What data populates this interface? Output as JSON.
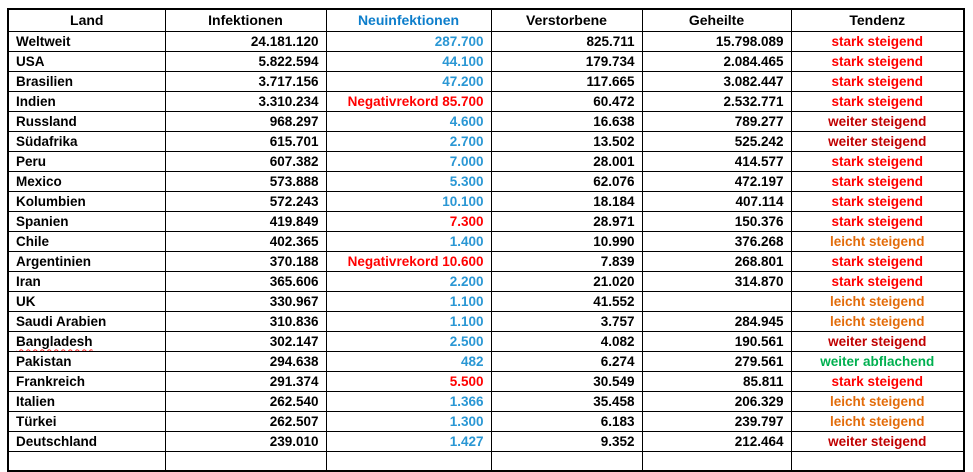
{
  "colors": {
    "header_blue": "#0d7ecb",
    "blue": "#2a97d4",
    "bright_red": "#ff0000",
    "dark_red": "#c00000",
    "orange": "#e36c0a",
    "green": "#00b050",
    "text": "#000000",
    "border": "#000000"
  },
  "table": {
    "headers": [
      {
        "label": "Land"
      },
      {
        "label": "Infektionen"
      },
      {
        "label": "Neuinfektionen",
        "color": "header_blue"
      },
      {
        "label": "Verstorbene"
      },
      {
        "label": "Geheilte"
      },
      {
        "label": "Tendenz"
      }
    ],
    "rows": [
      {
        "land": "Weltweit",
        "infektionen": "24.181.120",
        "neuinfektionen": "287.700",
        "neu_color": "blue",
        "verstorbene": "825.711",
        "geheilte": "15.798.089",
        "tendenz": "stark steigend",
        "tendenz_color": "bright_red"
      },
      {
        "land": "USA",
        "infektionen": "5.822.594",
        "neuinfektionen": "44.100",
        "neu_color": "blue",
        "verstorbene": "179.734",
        "geheilte": "2.084.465",
        "tendenz": "stark steigend",
        "tendenz_color": "bright_red"
      },
      {
        "land": "Brasilien",
        "infektionen": "3.717.156",
        "neuinfektionen": "47.200",
        "neu_color": "blue",
        "verstorbene": "117.665",
        "geheilte": "3.082.447",
        "tendenz": "stark steigend",
        "tendenz_color": "bright_red"
      },
      {
        "land": "Indien",
        "infektionen": "3.310.234",
        "neuinfektionen": "Negativrekord 85.700",
        "neu_color": "bright_red",
        "verstorbene": "60.472",
        "geheilte": "2.532.771",
        "tendenz": "stark steigend",
        "tendenz_color": "bright_red"
      },
      {
        "land": "Russland",
        "infektionen": "968.297",
        "neuinfektionen": "4.600",
        "neu_color": "blue",
        "verstorbene": "16.638",
        "geheilte": "789.277",
        "tendenz": "weiter steigend",
        "tendenz_color": "dark_red"
      },
      {
        "land": "Südafrika",
        "infektionen": "615.701",
        "neuinfektionen": "2.700",
        "neu_color": "blue",
        "verstorbene": "13.502",
        "geheilte": "525.242",
        "tendenz": "weiter steigend",
        "tendenz_color": "dark_red"
      },
      {
        "land": "Peru",
        "infektionen": "607.382",
        "neuinfektionen": "7.000",
        "neu_color": "blue",
        "verstorbene": "28.001",
        "geheilte": "414.577",
        "tendenz": "stark steigend",
        "tendenz_color": "bright_red"
      },
      {
        "land": "Mexico",
        "infektionen": "573.888",
        "neuinfektionen": "5.300",
        "neu_color": "blue",
        "verstorbene": "62.076",
        "geheilte": "472.197",
        "tendenz": "stark steigend",
        "tendenz_color": "bright_red"
      },
      {
        "land": "Kolumbien",
        "infektionen": "572.243",
        "neuinfektionen": "10.100",
        "neu_color": "blue",
        "verstorbene": "18.184",
        "geheilte": "407.114",
        "tendenz": "stark steigend",
        "tendenz_color": "bright_red"
      },
      {
        "land": "Spanien",
        "infektionen": "419.849",
        "neuinfektionen": "7.300",
        "neu_color": "bright_red",
        "verstorbene": "28.971",
        "geheilte": "150.376",
        "tendenz": "stark steigend",
        "tendenz_color": "bright_red"
      },
      {
        "land": "Chile",
        "infektionen": "402.365",
        "neuinfektionen": "1.400",
        "neu_color": "blue",
        "verstorbene": "10.990",
        "geheilte": "376.268",
        "tendenz": "leicht steigend",
        "tendenz_color": "orange"
      },
      {
        "land": "Argentinien",
        "infektionen": "370.188",
        "neuinfektionen": "Negativrekord 10.600",
        "neu_color": "bright_red",
        "verstorbene": "7.839",
        "geheilte": "268.801",
        "tendenz": "stark steigend",
        "tendenz_color": "bright_red"
      },
      {
        "land": "Iran",
        "infektionen": "365.606",
        "neuinfektionen": "2.200",
        "neu_color": "blue",
        "verstorbene": "21.020",
        "geheilte": "314.870",
        "tendenz": "stark steigend",
        "tendenz_color": "bright_red"
      },
      {
        "land": "UK",
        "infektionen": "330.967",
        "neuinfektionen": "1.100",
        "neu_color": "blue",
        "verstorbene": "41.552",
        "geheilte": "",
        "tendenz": "leicht steigend",
        "tendenz_color": "orange"
      },
      {
        "land": "Saudi Arabien",
        "infektionen": "310.836",
        "neuinfektionen": "1.100",
        "neu_color": "blue",
        "verstorbene": "3.757",
        "geheilte": "284.945",
        "tendenz": "leicht steigend",
        "tendenz_color": "orange"
      },
      {
        "land": "Bangladesh",
        "infektionen": "302.147",
        "neuinfektionen": "2.500",
        "neu_color": "blue",
        "verstorbene": "4.082",
        "geheilte": "190.561",
        "tendenz": "weiter steigend",
        "tendenz_color": "dark_red",
        "spellcheck": true
      },
      {
        "land": "Pakistan",
        "infektionen": "294.638",
        "neuinfektionen": "482",
        "neu_color": "blue",
        "verstorbene": "6.274",
        "geheilte": "279.561",
        "tendenz": "weiter abflachend",
        "tendenz_color": "green"
      },
      {
        "land": "Frankreich",
        "infektionen": "291.374",
        "neuinfektionen": "5.500",
        "neu_color": "bright_red",
        "verstorbene": "30.549",
        "geheilte": "85.811",
        "tendenz": "stark steigend",
        "tendenz_color": "bright_red"
      },
      {
        "land": "Italien",
        "infektionen": "262.540",
        "neuinfektionen": "1.366",
        "neu_color": "blue",
        "verstorbene": "35.458",
        "geheilte": "206.329",
        "tendenz": "leicht steigend",
        "tendenz_color": "orange"
      },
      {
        "land": "Türkei",
        "infektionen": "262.507",
        "neuinfektionen": "1.300",
        "neu_color": "blue",
        "verstorbene": "6.183",
        "geheilte": "239.797",
        "tendenz": "leicht steigend",
        "tendenz_color": "orange"
      },
      {
        "land": "Deutschland",
        "infektionen": "239.010",
        "neuinfektionen": "1.427",
        "neu_color": "blue",
        "verstorbene": "9.352",
        "geheilte": "212.464",
        "tendenz": "weiter steigend",
        "tendenz_color": "dark_red"
      }
    ],
    "trailing_empty_row": true
  }
}
